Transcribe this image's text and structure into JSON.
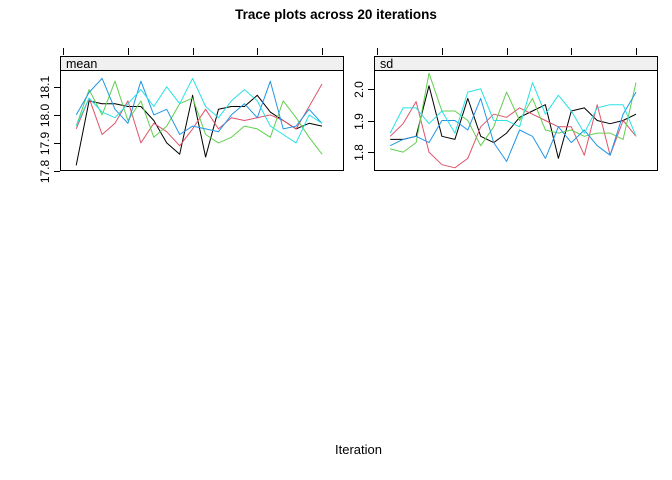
{
  "page": {
    "background": "#ffffff"
  },
  "chart_data": {
    "type": "line",
    "title": "Trace plots across 20 iterations",
    "xlabel": "Iteration",
    "legend": "none",
    "grid": false,
    "x": [
      1,
      2,
      3,
      4,
      5,
      6,
      7,
      8,
      9,
      10,
      11,
      12,
      13,
      14,
      15,
      16,
      17,
      18,
      19,
      20
    ],
    "xlim": [
      -0.25,
      21.7
    ],
    "xticks_unlabeled": [
      0,
      5,
      10,
      15,
      20
    ],
    "series_colors": {
      "black": "#000000",
      "red": "#DF536B",
      "green": "#61D04F",
      "blue": "#2297E6",
      "cyan": "#28E2E5"
    },
    "panels": [
      {
        "strip_label": "mean",
        "ylim": [
          17.8,
          18.16
        ],
        "yticks": [
          17.8,
          17.9,
          18.0,
          18.1
        ],
        "ytick_labels": [
          "17.8",
          "17.9",
          "18.0",
          "18.1"
        ],
        "series": [
          {
            "name": "black",
            "color": "#000000",
            "values": [
              17.82,
              18.05,
              18.04,
              18.04,
              18.03,
              18.03,
              17.98,
              17.9,
              17.86,
              18.07,
              17.85,
              18.02,
              18.03,
              18.03,
              18.07,
              18.01,
              17.98,
              17.95,
              17.97,
              17.96
            ]
          },
          {
            "name": "red",
            "color": "#DF536B",
            "values": [
              17.95,
              18.06,
              17.93,
              17.97,
              18.05,
              17.9,
              17.97,
              17.94,
              17.89,
              17.95,
              18.02,
              17.95,
              17.99,
              17.98,
              17.99,
              18.0,
              17.98,
              17.95,
              18.03,
              18.11
            ]
          },
          {
            "name": "green",
            "color": "#61D04F",
            "values": [
              17.96,
              18.09,
              18.0,
              18.12,
              17.98,
              18.05,
              17.92,
              17.96,
              18.04,
              18.06,
              17.93,
              17.9,
              17.92,
              17.96,
              17.95,
              17.92,
              18.05,
              17.99,
              17.92,
              17.86
            ]
          },
          {
            "name": "blue",
            "color": "#2297E6",
            "values": [
              18.0,
              18.08,
              18.13,
              18.02,
              17.97,
              18.12,
              18.0,
              18.02,
              17.93,
              17.96,
              17.95,
              17.94,
              18.0,
              18.04,
              17.99,
              18.12,
              17.95,
              17.96,
              18.02,
              17.97
            ]
          },
          {
            "name": "cyan",
            "color": "#28E2E5",
            "values": [
              17.96,
              18.06,
              18.01,
              17.99,
              18.04,
              18.09,
              18.03,
              18.1,
              18.04,
              18.13,
              18.03,
              17.99,
              18.05,
              18.09,
              18.05,
              17.96,
              17.93,
              17.9,
              18.0,
              17.97
            ]
          }
        ]
      },
      {
        "strip_label": "sd",
        "ylim": [
          1.74,
          2.06
        ],
        "yticks": [
          1.8,
          1.9,
          2.0
        ],
        "ytick_labels": [
          "1.8",
          "1.9",
          "2.0"
        ],
        "series": [
          {
            "name": "black",
            "color": "#000000",
            "values": [
              1.84,
              1.84,
              1.85,
              2.01,
              1.85,
              1.84,
              1.97,
              1.85,
              1.83,
              1.86,
              1.91,
              1.93,
              1.95,
              1.78,
              1.93,
              1.94,
              1.9,
              1.89,
              1.9,
              1.92
            ]
          },
          {
            "name": "red",
            "color": "#DF536B",
            "values": [
              1.85,
              1.89,
              1.96,
              1.8,
              1.76,
              1.75,
              1.78,
              1.88,
              1.92,
              1.91,
              1.94,
              1.92,
              1.9,
              1.88,
              1.88,
              1.79,
              1.95,
              1.79,
              1.9,
              1.85
            ]
          },
          {
            "name": "green",
            "color": "#61D04F",
            "values": [
              1.81,
              1.8,
              1.83,
              2.05,
              1.93,
              1.93,
              1.9,
              1.82,
              1.88,
              1.99,
              1.9,
              1.97,
              1.87,
              1.86,
              1.87,
              1.85,
              1.86,
              1.86,
              1.84,
              2.02
            ]
          },
          {
            "name": "blue",
            "color": "#2297E6",
            "values": [
              1.82,
              1.84,
              1.85,
              1.83,
              1.9,
              1.9,
              1.87,
              1.97,
              1.83,
              1.77,
              1.87,
              1.85,
              1.78,
              1.88,
              1.83,
              1.87,
              1.82,
              1.79,
              1.92,
              1.99
            ]
          },
          {
            "name": "cyan",
            "color": "#28E2E5",
            "values": [
              1.86,
              1.94,
              1.94,
              1.89,
              1.93,
              1.86,
              1.99,
              2.0,
              1.9,
              1.9,
              1.88,
              2.02,
              1.92,
              1.98,
              1.93,
              1.86,
              1.94,
              1.95,
              1.95,
              1.85
            ]
          }
        ]
      }
    ]
  }
}
